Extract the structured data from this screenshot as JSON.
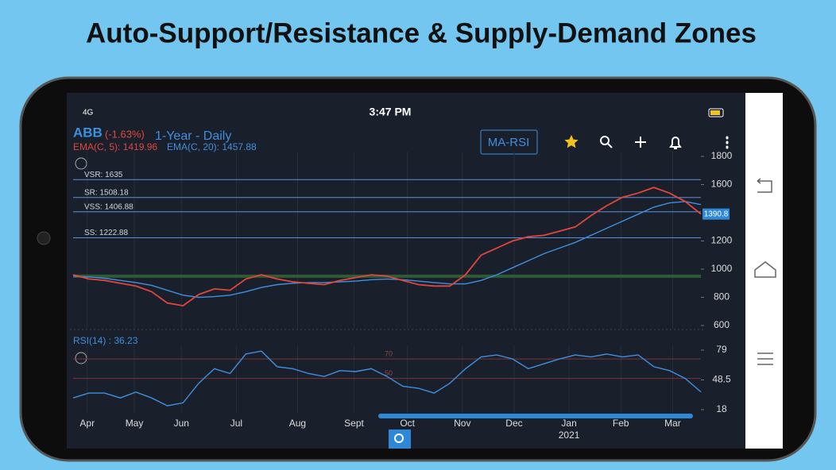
{
  "header": {
    "title": "Auto-Support/Resistance & Supply-Demand Zones"
  },
  "status_bar": {
    "network": "4G",
    "time": "3:47 PM"
  },
  "app_bar": {
    "symbol": "ABB",
    "change": "(-1.63%)",
    "period": "1-Year - Daily",
    "ema_short": "EMA(C, 5): 1419.96",
    "ema_long": "EMA(C, 20): 1457.88",
    "indicator_button": "MA-RSI"
  },
  "chart_data": [
    {
      "type": "line",
      "x": [
        0,
        1,
        2,
        3,
        4,
        5,
        6,
        7,
        8,
        9,
        10,
        11,
        12,
        13,
        14,
        15,
        16,
        17,
        18,
        19,
        20,
        21,
        22,
        23,
        24,
        25,
        26,
        27,
        28,
        29,
        30,
        31,
        32,
        33,
        34,
        35,
        36,
        37,
        38,
        39,
        40
      ],
      "xlim": [
        0,
        40
      ],
      "ylim": [
        600,
        1800
      ],
      "yticks": [
        600,
        800,
        1000,
        1200,
        1600,
        1800
      ],
      "series": [
        {
          "name": "EMA(C, 20)",
          "color": "#3f8fe0",
          "values": [
            950,
            945,
            935,
            920,
            905,
            885,
            850,
            815,
            800,
            805,
            815,
            840,
            870,
            890,
            900,
            905,
            905,
            910,
            915,
            925,
            930,
            925,
            915,
            905,
            895,
            895,
            920,
            960,
            1010,
            1060,
            1110,
            1150,
            1190,
            1240,
            1290,
            1340,
            1390,
            1440,
            1470,
            1480,
            1457.88
          ]
        },
        {
          "name": "Price",
          "color": "#e0463c",
          "values": [
            960,
            930,
            920,
            900,
            880,
            840,
            760,
            740,
            820,
            860,
            850,
            930,
            960,
            930,
            910,
            900,
            890,
            920,
            940,
            960,
            950,
            920,
            890,
            880,
            880,
            960,
            1100,
            1150,
            1200,
            1230,
            1240,
            1270,
            1300,
            1380,
            1450,
            1510,
            1540,
            1580,
            1540,
            1480,
            1390.8
          ]
        }
      ],
      "levels": [
        {
          "label": "VSR: 1635",
          "value": 1635
        },
        {
          "label": "SR: 1508.18",
          "value": 1508.18
        },
        {
          "label": "VSS: 1406.88",
          "value": 1406.88
        },
        {
          "label": "SS: 1222.88",
          "value": 1222.88
        }
      ],
      "zone": 950
    },
    {
      "type": "line",
      "indicator_label": "RSI(14) : 36.23",
      "x": [
        0,
        1,
        2,
        3,
        4,
        5,
        6,
        7,
        8,
        9,
        10,
        11,
        12,
        13,
        14,
        15,
        16,
        17,
        18,
        19,
        20,
        21,
        22,
        23,
        24,
        25,
        26,
        27,
        28,
        29,
        30,
        31,
        32,
        33,
        34,
        35,
        36,
        37,
        38,
        39,
        40
      ],
      "xlim": [
        0,
        40
      ],
      "ylim": [
        18,
        79
      ],
      "yticks": [
        18,
        48.5,
        79
      ],
      "xticks": [
        {
          "value": 0.9,
          "label": "Apr"
        },
        {
          "value": 3.9,
          "label": "May"
        },
        {
          "value": 6.9,
          "label": "Jun"
        },
        {
          "value": 10.4,
          "label": "Jul"
        },
        {
          "value": 14.3,
          "label": "Aug"
        },
        {
          "value": 17.9,
          "label": "Sept"
        },
        {
          "value": 21.3,
          "label": "Oct"
        },
        {
          "value": 24.8,
          "label": "Nov"
        },
        {
          "value": 28.1,
          "label": "Dec"
        },
        {
          "value": 31.6,
          "label": "Jan"
        },
        {
          "value": 34.9,
          "label": "Feb"
        },
        {
          "value": 38.2,
          "label": "Mar"
        }
      ],
      "year_label": "2021",
      "series": [
        {
          "name": "RSI(14)",
          "color": "#3f8fe0",
          "values": [
            30,
            35,
            35,
            30,
            36,
            30,
            22,
            25,
            45,
            60,
            55,
            75,
            78,
            62,
            60,
            55,
            52,
            58,
            57,
            60,
            52,
            42,
            40,
            35,
            45,
            60,
            72,
            74,
            70,
            60,
            65,
            70,
            74,
            72,
            75,
            72,
            74,
            62,
            58,
            50,
            36.23
          ]
        }
      ],
      "levels": [
        {
          "label": "70",
          "value": 70
        },
        {
          "label": "50",
          "value": 50
        }
      ]
    }
  ]
}
